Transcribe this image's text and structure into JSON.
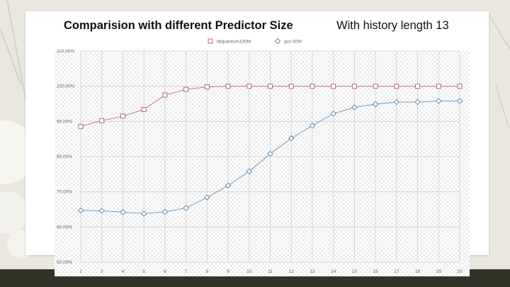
{
  "slide": {
    "title": "Comparision with different Predictor Size",
    "subtitle": "With history length 13"
  },
  "colors": {
    "series1": "#b25a5a",
    "series2": "#4f83ad",
    "grid": "#cfcfcf",
    "hatch": "#dedede"
  },
  "chart_data": {
    "type": "line",
    "title": "",
    "xlabel": "",
    "ylabel": "",
    "x": [
      2,
      3,
      4,
      5,
      6,
      7,
      8,
      9,
      10,
      11,
      12,
      13,
      14,
      15,
      16,
      17,
      18,
      19,
      20
    ],
    "ylim": [
      50,
      110
    ],
    "yticks": [
      "50.00%",
      "60.00%",
      "70.00%",
      "80.00%",
      "90.00%",
      "100.00%",
      "110.00%"
    ],
    "grid": true,
    "legend_position": "top",
    "series": [
      {
        "name": "libquantum100M",
        "marker": "square",
        "values": [
          88.6,
          90.2,
          91.5,
          93.4,
          97.5,
          99.1,
          99.8,
          100.0,
          100.0,
          100.0,
          100.0,
          100.0,
          100.0,
          100.0,
          100.0,
          100.0,
          100.0,
          100.0,
          100.0
        ]
      },
      {
        "name": "gcc-50M",
        "marker": "diamond",
        "values": [
          64.7,
          64.6,
          64.2,
          63.8,
          64.3,
          65.4,
          68.4,
          71.8,
          75.8,
          80.8,
          85.2,
          88.8,
          92.2,
          94.0,
          94.9,
          95.5,
          95.5,
          95.8,
          95.8
        ]
      }
    ]
  }
}
